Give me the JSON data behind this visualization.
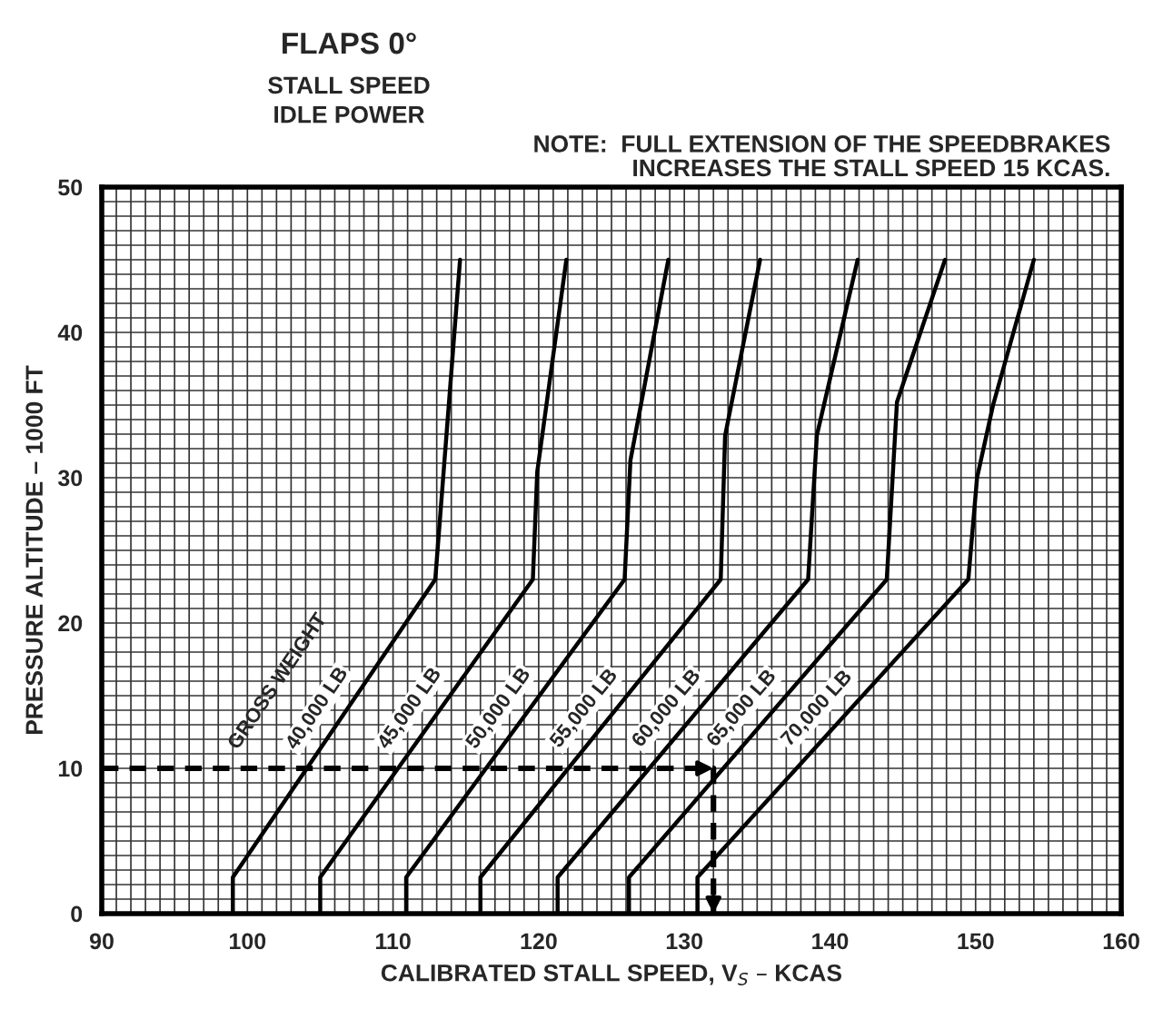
{
  "chart_data": {
    "type": "line",
    "title": "FLAPS 0°",
    "subtitle": "STALL SPEED\nIDLE POWER",
    "xlabel": "CALIBRATED STALL SPEED, V$_{S}$ – KCAS",
    "ylabel": "PRESSURE ALTITUDE – 1000 FT",
    "annotations": [
      "NOTE:  FULL EXTENSION OF THE SPEEDBRAKES\n            INCREASES THE STALL SPEED 15 KCAS.",
      "GROSS WEIGHT"
    ],
    "xlim": [
      90,
      160
    ],
    "ylim": [
      0,
      50
    ],
    "xticks": [
      90,
      100,
      110,
      120,
      130,
      140,
      150,
      160
    ],
    "yticks": [
      0,
      10,
      20,
      30,
      40,
      50
    ],
    "grid": true,
    "legend": false,
    "marker": "none",
    "line_style": "solid",
    "series": [
      {
        "name": "40,000 LB",
        "color": "#000000",
        "x": [
          99.0,
          99.0,
          112.9,
          114.6
        ],
        "values": [
          0,
          2.5,
          23,
          45
        ]
      },
      {
        "name": "45,000 LB",
        "color": "#000000",
        "x": [
          105.0,
          105.0,
          119.6,
          119.9,
          121.9
        ],
        "values": [
          0,
          2.5,
          23,
          30.4,
          45
        ]
      },
      {
        "name": "50,000 LB",
        "color": "#000000",
        "x": [
          110.9,
          110.9,
          125.9,
          126.3,
          128.9
        ],
        "values": [
          0,
          2.5,
          23,
          31.2,
          45
        ]
      },
      {
        "name": "55,000 LB",
        "color": "#000000",
        "x": [
          116.0,
          116.0,
          132.5,
          132.8,
          135.2
        ],
        "values": [
          0,
          2.5,
          23,
          32.9,
          45
        ]
      },
      {
        "name": "60,000 LB",
        "color": "#000000",
        "x": [
          121.3,
          121.3,
          138.5,
          139.1,
          141.9
        ],
        "values": [
          0,
          2.5,
          23,
          32.9,
          45
        ]
      },
      {
        "name": "65,000 LB",
        "color": "#000000",
        "x": [
          126.2,
          126.2,
          143.9,
          144.6,
          147.9
        ],
        "values": [
          0,
          2.5,
          23,
          35.2,
          45
        ]
      },
      {
        "name": "70,000 LB",
        "color": "#000000",
        "x": [
          130.9,
          130.9,
          149.5,
          150.1,
          151.2,
          154.0
        ],
        "values": [
          0,
          2.5,
          23,
          30.0,
          35.0,
          45
        ]
      },
      {
        "type": "line",
        "line_style": "dashed",
        "color": "#000000",
        "x": [
          90,
          132.0,
          132.0
        ],
        "values": [
          10,
          10,
          0
        ]
      }
    ]
  }
}
